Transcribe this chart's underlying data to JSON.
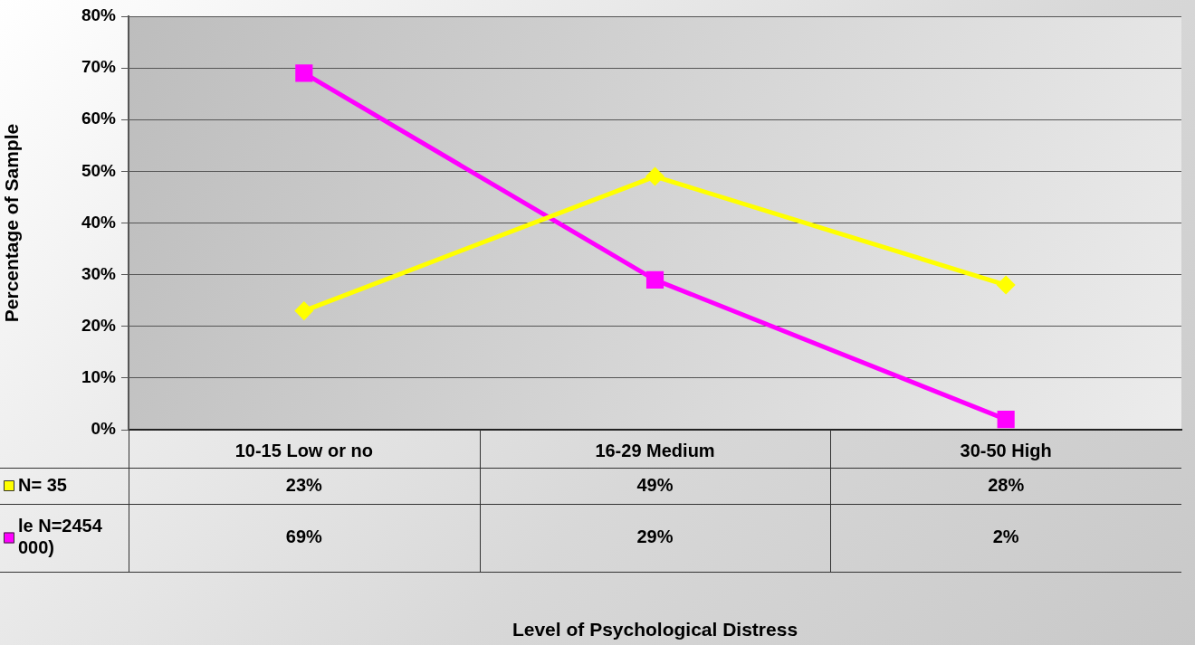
{
  "chart_data": {
    "type": "line",
    "annotations": [
      "Level of Psychological Distress"
    ],
    "ylabel": "Percentage of Sample",
    "categories": [
      "10-15 Low or no",
      "16-29 Medium",
      "30-50 High"
    ],
    "series": [
      {
        "name": "N= 35",
        "color": "#ffff00",
        "marker": "diamond",
        "values": [
          23,
          49,
          28
        ],
        "value_labels": [
          "23%",
          "49%",
          "28%"
        ]
      },
      {
        "name": "le N=2454 000)",
        "color": "#ff00ff",
        "marker": "square",
        "values": [
          69,
          29,
          2
        ],
        "value_labels": [
          "69%",
          "29%",
          "2%"
        ]
      }
    ],
    "ylim": [
      0,
      80
    ],
    "yticks": [
      {
        "value": 0,
        "label": "0%"
      },
      {
        "value": 10,
        "label": "10%"
      },
      {
        "value": 20,
        "label": "20%"
      },
      {
        "value": 30,
        "label": "30%"
      },
      {
        "value": 40,
        "label": "40%"
      },
      {
        "value": 50,
        "label": "50%"
      },
      {
        "value": 60,
        "label": "60%"
      },
      {
        "value": 70,
        "label": "70%"
      },
      {
        "value": 80,
        "label": "80%"
      }
    ],
    "grid": "y",
    "legend": "bottom left",
    "line_style": "solid"
  }
}
